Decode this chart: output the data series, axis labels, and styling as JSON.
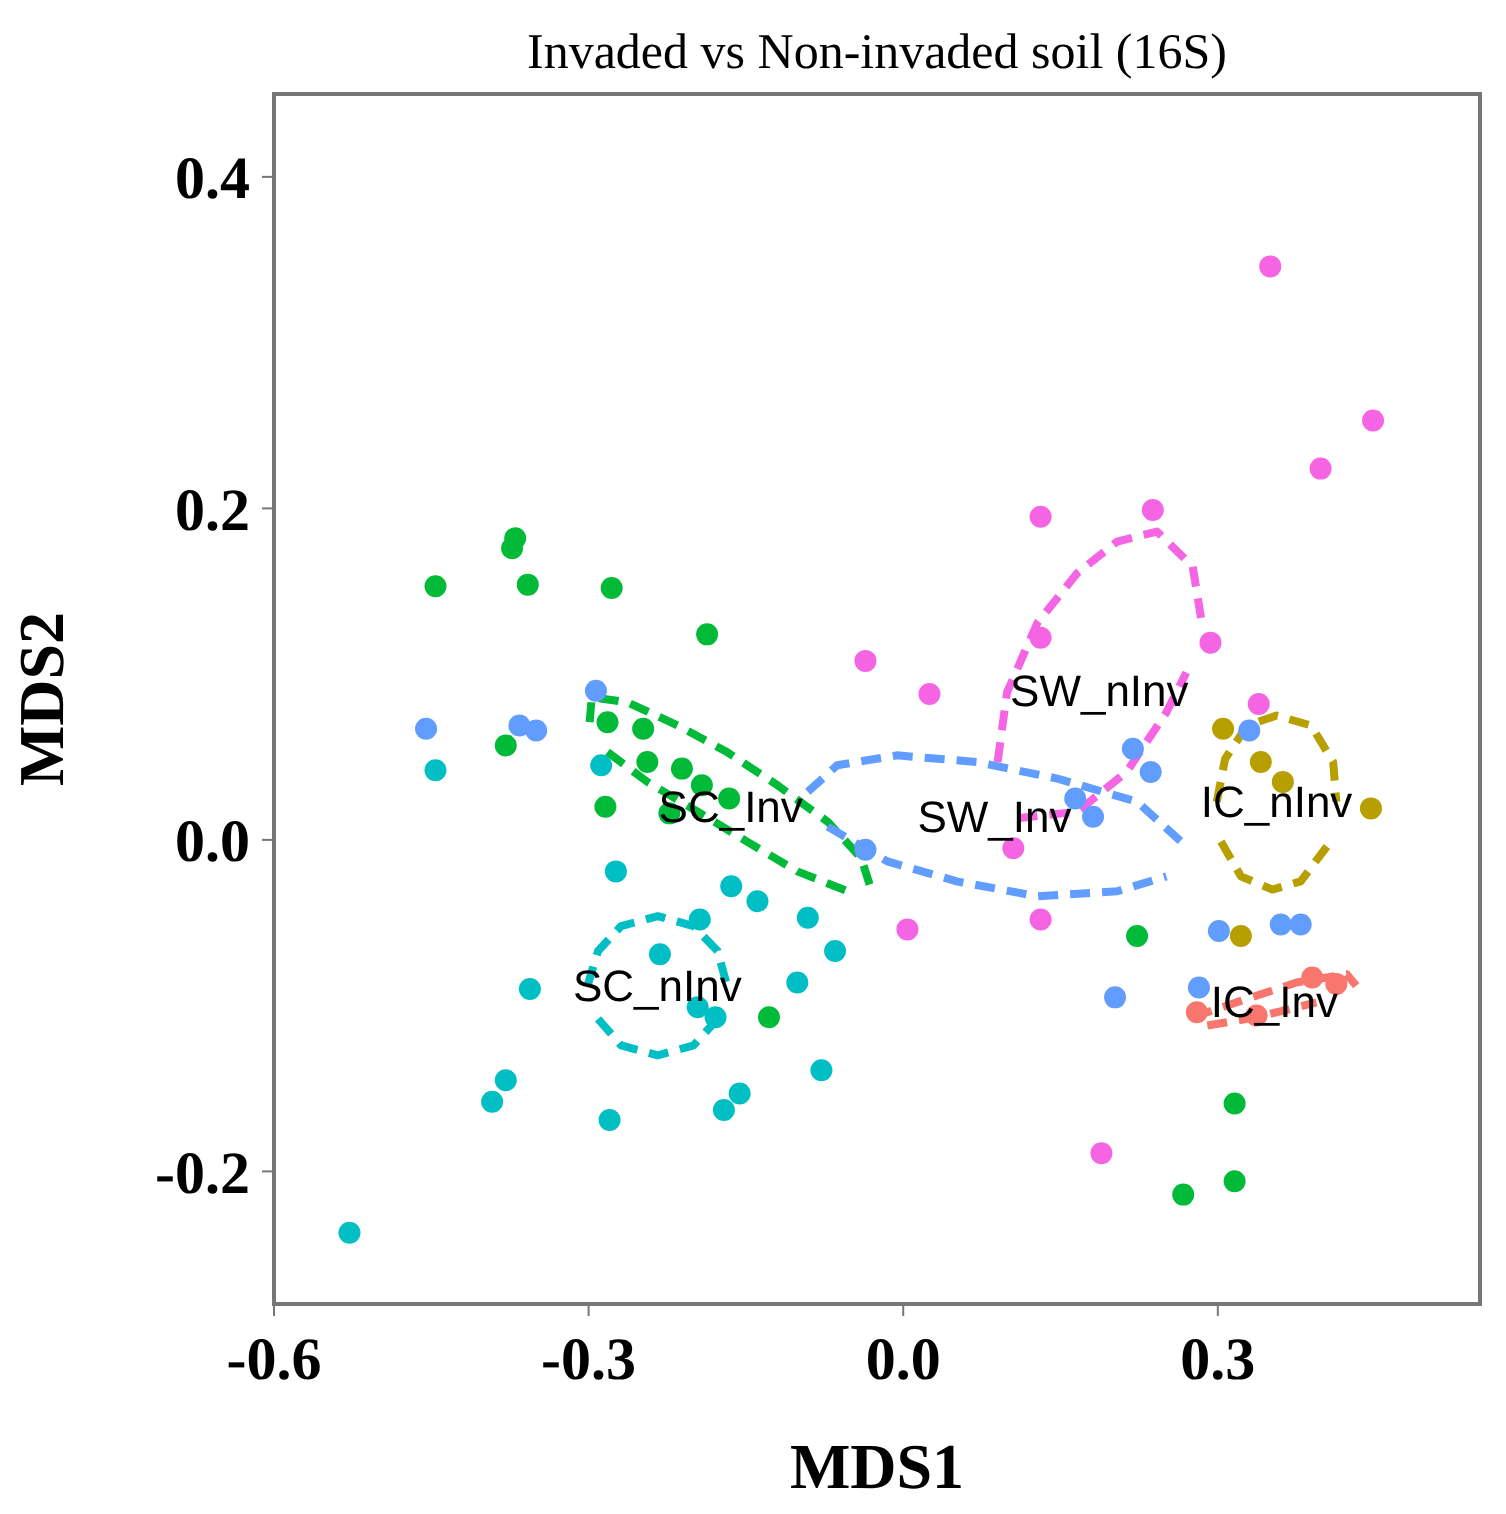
{
  "chart_data": {
    "type": "scatter",
    "title": "Invaded vs Non-invaded soil (16S)",
    "xlabel": "MDS1",
    "ylabel": "MDS2",
    "xlim": [
      -0.6,
      0.55
    ],
    "ylim": [
      -0.28,
      0.45
    ],
    "xticks": [
      -0.6,
      -0.3,
      {
        "value": 0,
        "label": "0.0"
      },
      0.3
    ],
    "yticks": [
      -0.2,
      {
        "value": 0,
        "label": "0.0"
      },
      0.2,
      0.4
    ],
    "grid": false,
    "legend": false,
    "marker": "circle",
    "series": [
      {
        "color": "#00ba38",
        "x": [
          -0.446,
          -0.37,
          -0.373,
          -0.358,
          -0.278,
          -0.187,
          -0.379,
          -0.282,
          -0.248,
          -0.244,
          -0.211,
          -0.192,
          -0.166,
          -0.223,
          -0.284,
          -0.128,
          0.223,
          0.316,
          0.316,
          0.267
        ],
        "values": [
          0.153,
          0.182,
          0.176,
          0.154,
          0.152,
          0.124,
          0.057,
          0.071,
          0.067,
          0.047,
          0.043,
          0.033,
          0.025,
          0.016,
          0.02,
          -0.107,
          -0.058,
          -0.159,
          -0.206,
          -0.214
        ]
      },
      {
        "color": "#00bfc4",
        "x": [
          -0.446,
          -0.288,
          -0.274,
          -0.164,
          -0.139,
          -0.194,
          -0.091,
          -0.065,
          -0.232,
          -0.101,
          -0.356,
          -0.196,
          -0.179,
          -0.078,
          -0.379,
          -0.392,
          -0.156,
          -0.171,
          -0.28,
          -0.528
        ],
        "values": [
          0.042,
          0.045,
          -0.019,
          -0.028,
          -0.037,
          -0.048,
          -0.047,
          -0.067,
          -0.069,
          -0.086,
          -0.09,
          -0.101,
          -0.107,
          -0.139,
          -0.145,
          -0.158,
          -0.153,
          -0.163,
          -0.169,
          -0.237
        ]
      },
      {
        "color": "#619cff",
        "x": [
          -0.455,
          -0.366,
          -0.35,
          -0.293,
          -0.036,
          0.219,
          0.236,
          0.33,
          0.164,
          0.181,
          0.301,
          0.36,
          0.379,
          0.282,
          0.202
        ],
        "values": [
          0.067,
          0.069,
          0.066,
          0.09,
          -0.006,
          0.055,
          0.041,
          0.066,
          0.025,
          0.014,
          -0.055,
          -0.051,
          -0.051,
          -0.089,
          -0.095
        ]
      },
      {
        "color": "#f564e3",
        "x": [
          0.35,
          0.448,
          0.398,
          0.131,
          0.238,
          0.131,
          0.293,
          0.025,
          -0.036,
          0.339,
          0.105,
          0.004,
          0.131,
          0.189
        ],
        "values": [
          0.346,
          0.253,
          0.224,
          0.195,
          0.199,
          0.122,
          0.119,
          0.088,
          0.108,
          0.082,
          -0.005,
          -0.054,
          -0.048,
          -0.189
        ]
      },
      {
        "color": "#b79f00",
        "x": [
          0.305,
          0.341,
          0.362,
          0.446,
          0.322
        ],
        "values": [
          0.067,
          0.047,
          0.035,
          0.019,
          -0.058
        ]
      },
      {
        "color": "#f8766d",
        "x": [
          0.28,
          0.337,
          0.39,
          0.413
        ],
        "values": [
          -0.104,
          -0.106,
          -0.083,
          -0.087
        ]
      },
      {
        "type": "line",
        "name": "SC_Inv",
        "color": "#00ba38",
        "line_style": "dashed",
        "marker": "none",
        "x": [
          -0.299,
          -0.297,
          -0.263,
          -0.215,
          -0.168,
          -0.12,
          -0.072,
          -0.04,
          -0.03
        ],
        "values": [
          0.071,
          0.086,
          0.083,
          0.069,
          0.053,
          0.033,
          0.011,
          -0.011,
          -0.031
        ]
      },
      {
        "type": "line",
        "color": "#00ba38",
        "line_style": "dashed",
        "marker": "none",
        "x": [
          -0.282,
          -0.244,
          -0.196,
          -0.149,
          -0.101,
          -0.053
        ],
        "values": [
          0.053,
          0.035,
          0.017,
          -0.001,
          -0.019,
          -0.031
        ]
      },
      {
        "type": "line",
        "name": "SC_nInv",
        "color": "#00bfc4",
        "line_style": "dashed",
        "marker": "none",
        "x": [
          -0.301,
          -0.291,
          -0.269,
          -0.234,
          -0.2,
          -0.177,
          -0.168
        ],
        "values": [
          -0.088,
          -0.067,
          -0.052,
          -0.046,
          -0.052,
          -0.067,
          -0.088
        ]
      },
      {
        "type": "line",
        "color": "#00bfc4",
        "line_style": "dashed",
        "marker": "none",
        "x": [
          -0.291,
          -0.269,
          -0.234,
          -0.2,
          -0.177
        ],
        "values": [
          -0.108,
          -0.124,
          -0.13,
          -0.124,
          -0.108
        ]
      },
      {
        "type": "line",
        "name": "SW_Inv",
        "color": "#619cff",
        "line_style": "dashed",
        "marker": "none",
        "x": [
          -0.091,
          -0.063,
          -0.006,
          0.07,
          0.147,
          0.223,
          0.265
        ],
        "values": [
          0.029,
          0.045,
          0.051,
          0.047,
          0.037,
          0.023,
          -0.001
        ]
      },
      {
        "type": "line",
        "color": "#619cff",
        "line_style": "dashed",
        "marker": "none",
        "x": [
          -0.072,
          -0.015,
          0.051,
          0.128,
          0.204,
          0.251
        ],
        "values": [
          0.008,
          -0.013,
          -0.025,
          -0.034,
          -0.031,
          -0.022
        ]
      },
      {
        "type": "line",
        "name": "SW_nInv",
        "color": "#f564e3",
        "line_style": "dashed",
        "marker": "none",
        "x": [
          0.09,
          0.099,
          0.128,
          0.166,
          0.204,
          0.242,
          0.276,
          0.284
        ],
        "values": [
          0.047,
          0.089,
          0.131,
          0.161,
          0.18,
          0.186,
          0.165,
          0.134
        ]
      },
      {
        "type": "line",
        "color": "#f564e3",
        "line_style": "dashed",
        "marker": "none",
        "x": [
          0.109,
          0.166,
          0.213,
          0.251,
          0.27
        ],
        "values": [
          0.013,
          0.017,
          0.041,
          0.077,
          0.101
        ]
      },
      {
        "type": "line",
        "name": "IC_nInv",
        "color": "#b79f00",
        "line_style": "dashed",
        "marker": "none",
        "x": [
          0.299,
          0.307,
          0.328,
          0.356,
          0.389,
          0.41,
          0.413
        ],
        "values": [
          0.023,
          0.049,
          0.069,
          0.075,
          0.069,
          0.047,
          0.023
        ]
      },
      {
        "type": "line",
        "color": "#b79f00",
        "line_style": "dashed",
        "marker": "none",
        "x": [
          0.303,
          0.322,
          0.352,
          0.379,
          0.404
        ],
        "values": [
          -0.001,
          -0.022,
          -0.03,
          -0.025,
          -0.004
        ]
      },
      {
        "type": "line",
        "name": "IC_Inv",
        "color": "#f8766d",
        "line_style": "dashed",
        "marker": "none",
        "x": [
          0.276,
          0.318,
          0.375,
          0.423,
          0.432
        ],
        "values": [
          -0.107,
          -0.098,
          -0.086,
          -0.081,
          -0.088
        ]
      },
      {
        "type": "line",
        "color": "#f8766d",
        "line_style": "dashed",
        "marker": "none",
        "x": [
          0.29,
          0.337,
          0.394
        ],
        "values": [
          -0.112,
          -0.107,
          -0.098
        ]
      }
    ]
  }
}
